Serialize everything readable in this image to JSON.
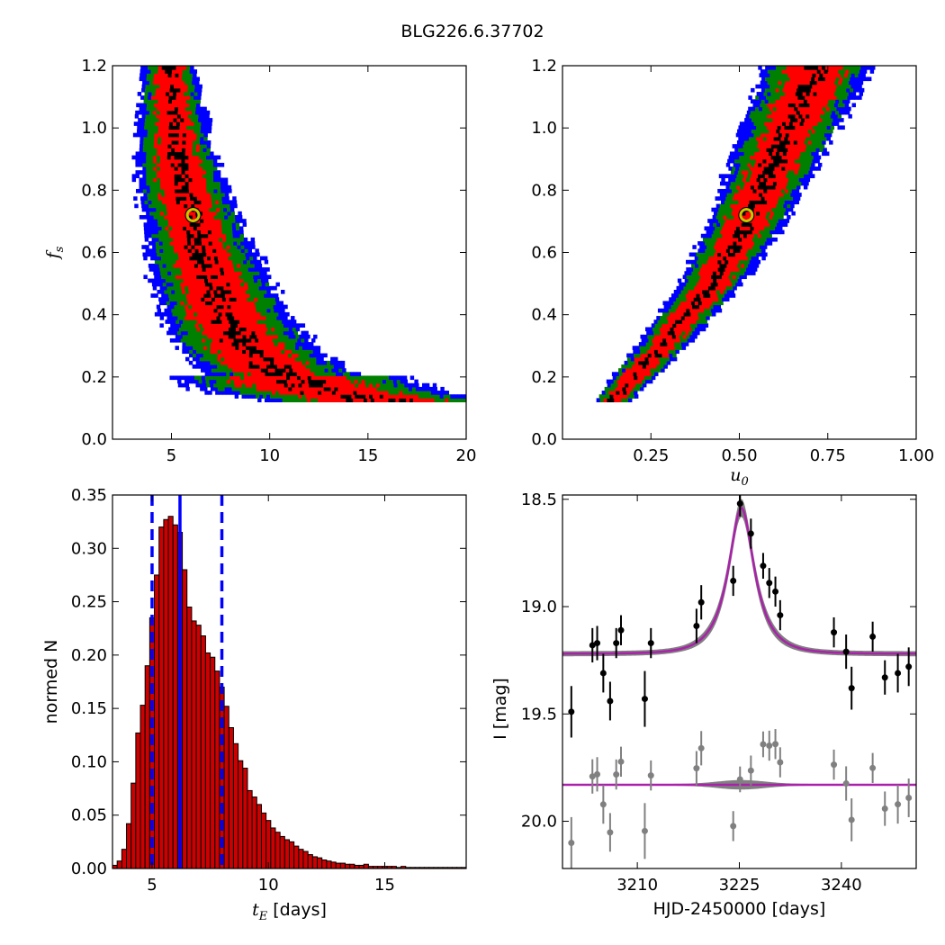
{
  "figure": {
    "title": "BLG226.6.37702",
    "background": "#ffffff"
  },
  "colors": {
    "level1": "#000000",
    "level2": "#ff0000",
    "level3": "#008000",
    "level4": "#0000ff",
    "best_marker_edge": "#c8c800",
    "hist_fill": "#cc0000",
    "median_line": "#0000ff",
    "model_line": "#aa22aa",
    "model_band": "#808080",
    "data_points": "#000000",
    "residual_points": "#808080"
  },
  "chart_data": [
    {
      "id": "fs_vs_tE",
      "type": "heatmap",
      "description_levels": [
        "black",
        "red",
        "green",
        "blue"
      ],
      "xlim": [
        2,
        20
      ],
      "ylim": [
        0.0,
        1.2
      ],
      "xticks": [
        "5",
        "10",
        "15",
        "20"
      ],
      "xtick_values": [
        5,
        10,
        15,
        20
      ],
      "yticks": [
        "0.0",
        "0.2",
        "0.4",
        "0.6",
        "0.8",
        "1.0",
        "1.2"
      ],
      "ytick_values": [
        0.0,
        0.2,
        0.4,
        0.6,
        0.8,
        1.0,
        1.2
      ],
      "xlabel": "",
      "ylabel": "f_s",
      "ridge": [
        [
          4.8,
          1.2
        ],
        [
          4.9,
          1.1
        ],
        [
          5.0,
          1.0
        ],
        [
          5.2,
          0.9
        ],
        [
          5.5,
          0.8
        ],
        [
          6.0,
          0.7
        ],
        [
          6.4,
          0.6
        ],
        [
          7.0,
          0.5
        ],
        [
          7.6,
          0.4
        ],
        [
          8.6,
          0.3
        ],
        [
          10.0,
          0.22
        ],
        [
          12.5,
          0.15
        ],
        [
          15.5,
          0.12
        ]
      ],
      "best_fit": {
        "x": 6.1,
        "y": 0.72
      }
    },
    {
      "id": "fs_vs_u0",
      "type": "heatmap",
      "description_levels": [
        "black",
        "red",
        "green",
        "blue"
      ],
      "xlim": [
        0.0,
        1.0
      ],
      "ylim": [
        0.0,
        1.2
      ],
      "xticks": [
        "0.25",
        "0.50",
        "0.75",
        "1.00"
      ],
      "xtick_values": [
        0.25,
        0.5,
        0.75,
        1.0
      ],
      "yticks": [
        "0.0",
        "0.2",
        "0.4",
        "0.6",
        "0.8",
        "1.0",
        "1.2"
      ],
      "ytick_values": [
        0.0,
        0.2,
        0.4,
        0.6,
        0.8,
        1.0,
        1.2
      ],
      "xlabel": "u_0",
      "ylabel": "",
      "ridge": [
        [
          0.14,
          0.12
        ],
        [
          0.2,
          0.2
        ],
        [
          0.28,
          0.3
        ],
        [
          0.35,
          0.4
        ],
        [
          0.42,
          0.5
        ],
        [
          0.47,
          0.6
        ],
        [
          0.52,
          0.7
        ],
        [
          0.56,
          0.8
        ],
        [
          0.6,
          0.9
        ],
        [
          0.64,
          1.0
        ],
        [
          0.68,
          1.1
        ],
        [
          0.72,
          1.2
        ]
      ],
      "best_fit": {
        "x": 0.52,
        "y": 0.72
      }
    },
    {
      "id": "tE_histogram",
      "type": "bar",
      "xlim": [
        3.3,
        18.5
      ],
      "ylim": [
        0.0,
        0.35
      ],
      "xticks": [
        "5",
        "10",
        "15"
      ],
      "xtick_values": [
        5,
        10,
        15
      ],
      "yticks": [
        "0.00",
        "0.05",
        "0.10",
        "0.15",
        "0.20",
        "0.25",
        "0.30",
        "0.35"
      ],
      "ytick_values": [
        0.0,
        0.05,
        0.1,
        0.15,
        0.2,
        0.25,
        0.3,
        0.35
      ],
      "xlabel": "t_E [days]",
      "ylabel": "normed N",
      "bin_start": 3.3,
      "bin_width": 0.2,
      "values": [
        0.003,
        0.007,
        0.018,
        0.042,
        0.08,
        0.127,
        0.153,
        0.19,
        0.235,
        0.275,
        0.32,
        0.327,
        0.33,
        0.322,
        0.315,
        0.28,
        0.245,
        0.232,
        0.228,
        0.218,
        0.202,
        0.198,
        0.185,
        0.17,
        0.152,
        0.132,
        0.117,
        0.101,
        0.094,
        0.073,
        0.067,
        0.06,
        0.052,
        0.045,
        0.038,
        0.034,
        0.03,
        0.027,
        0.025,
        0.021,
        0.018,
        0.016,
        0.013,
        0.011,
        0.01,
        0.008,
        0.007,
        0.006,
        0.005,
        0.005,
        0.004,
        0.004,
        0.003,
        0.003,
        0.004,
        0.002,
        0.002,
        0.002,
        0.002,
        0.002,
        0.002,
        0.001,
        0.002,
        0.001,
        0.001,
        0.001,
        0.001,
        0.001,
        0.001,
        0.001,
        0.001,
        0.001,
        0.001,
        0.001,
        0.001,
        0.001
      ],
      "median": 6.2,
      "lower": 5.0,
      "upper": 8.0
    },
    {
      "id": "lightcurve",
      "type": "scatter",
      "xlim": [
        3199,
        3251
      ],
      "ylim": [
        20.22,
        18.48
      ],
      "xticks": [
        "3210",
        "3225",
        "3240"
      ],
      "xtick_values": [
        3210,
        3225,
        3240
      ],
      "yticks": [
        "18.5",
        "19.0",
        "19.5",
        "20.0"
      ],
      "ytick_values": [
        18.5,
        19.0,
        19.5,
        20.0
      ],
      "xlabel": "HJD-2450000 [days]",
      "ylabel": "I [mag]",
      "model": {
        "t0": 3225.3,
        "tE": 4.0,
        "u0": 0.5,
        "base": 19.22,
        "amp": 0.68
      },
      "residual_offset": 19.83,
      "points": [
        {
          "t": 3200.3,
          "mag": 19.49,
          "err": 0.12
        },
        {
          "t": 3203.4,
          "mag": 19.18,
          "err": 0.08
        },
        {
          "t": 3204.1,
          "mag": 19.17,
          "err": 0.08
        },
        {
          "t": 3205.0,
          "mag": 19.31,
          "err": 0.09
        },
        {
          "t": 3206.0,
          "mag": 19.44,
          "err": 0.09
        },
        {
          "t": 3206.9,
          "mag": 19.17,
          "err": 0.07
        },
        {
          "t": 3207.6,
          "mag": 19.11,
          "err": 0.07
        },
        {
          "t": 3211.1,
          "mag": 19.43,
          "err": 0.13
        },
        {
          "t": 3212.0,
          "mag": 19.17,
          "err": 0.07
        },
        {
          "t": 3218.7,
          "mag": 19.09,
          "err": 0.08
        },
        {
          "t": 3219.4,
          "mag": 18.98,
          "err": 0.08
        },
        {
          "t": 3224.1,
          "mag": 18.88,
          "err": 0.07
        },
        {
          "t": 3225.1,
          "mag": 18.52,
          "err": 0.06
        },
        {
          "t": 3226.7,
          "mag": 18.66,
          "err": 0.07
        },
        {
          "t": 3228.5,
          "mag": 18.81,
          "err": 0.06
        },
        {
          "t": 3229.4,
          "mag": 18.89,
          "err": 0.07
        },
        {
          "t": 3230.3,
          "mag": 18.93,
          "err": 0.07
        },
        {
          "t": 3231.0,
          "mag": 19.04,
          "err": 0.07
        },
        {
          "t": 3238.9,
          "mag": 19.12,
          "err": 0.07
        },
        {
          "t": 3240.7,
          "mag": 19.21,
          "err": 0.08
        },
        {
          "t": 3241.5,
          "mag": 19.38,
          "err": 0.1
        },
        {
          "t": 3244.6,
          "mag": 19.14,
          "err": 0.07
        },
        {
          "t": 3246.4,
          "mag": 19.33,
          "err": 0.08
        },
        {
          "t": 3248.3,
          "mag": 19.31,
          "err": 0.09
        },
        {
          "t": 3249.9,
          "mag": 19.28,
          "err": 0.09
        }
      ]
    }
  ]
}
